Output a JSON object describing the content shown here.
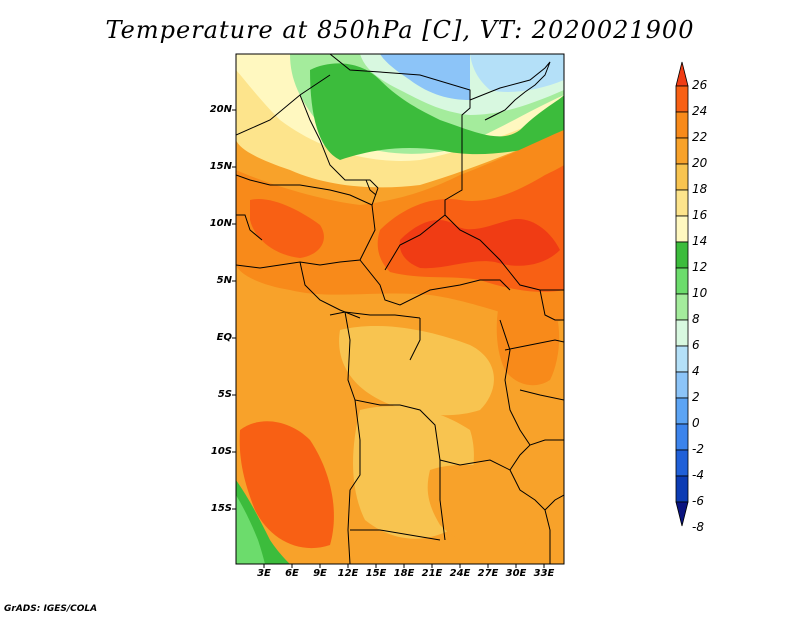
{
  "title": "Temperature at 850hPa [C], VT: 2020021900",
  "credit": "GrADS: IGES/COLA",
  "lat_labels": [
    "20N",
    "15N",
    "10N",
    "5N",
    "EQ",
    "5S",
    "10S",
    "15S"
  ],
  "lon_labels": [
    "3E",
    "6E",
    "9E",
    "12E",
    "15E",
    "18E",
    "21E",
    "24E",
    "27E",
    "30E",
    "33E"
  ],
  "colorbar": {
    "labels": [
      "26",
      "24",
      "22",
      "20",
      "18",
      "16",
      "14",
      "12",
      "10",
      "8",
      "6",
      "4",
      "2",
      "0",
      "-2",
      "-4",
      "-6",
      "-8"
    ],
    "colors": [
      "#f03c14",
      "#f86014",
      "#f88a1a",
      "#f8a22a",
      "#f8c450",
      "#fde48c",
      "#fff8c0",
      "#3cbc3c",
      "#6cdc6c",
      "#a4ec9c",
      "#d8f8e0",
      "#b4e0f8",
      "#8cc4f8",
      "#5ca4f4",
      "#3c84ec",
      "#2060d8",
      "#0c3cb4",
      "#0a1480"
    ]
  }
}
